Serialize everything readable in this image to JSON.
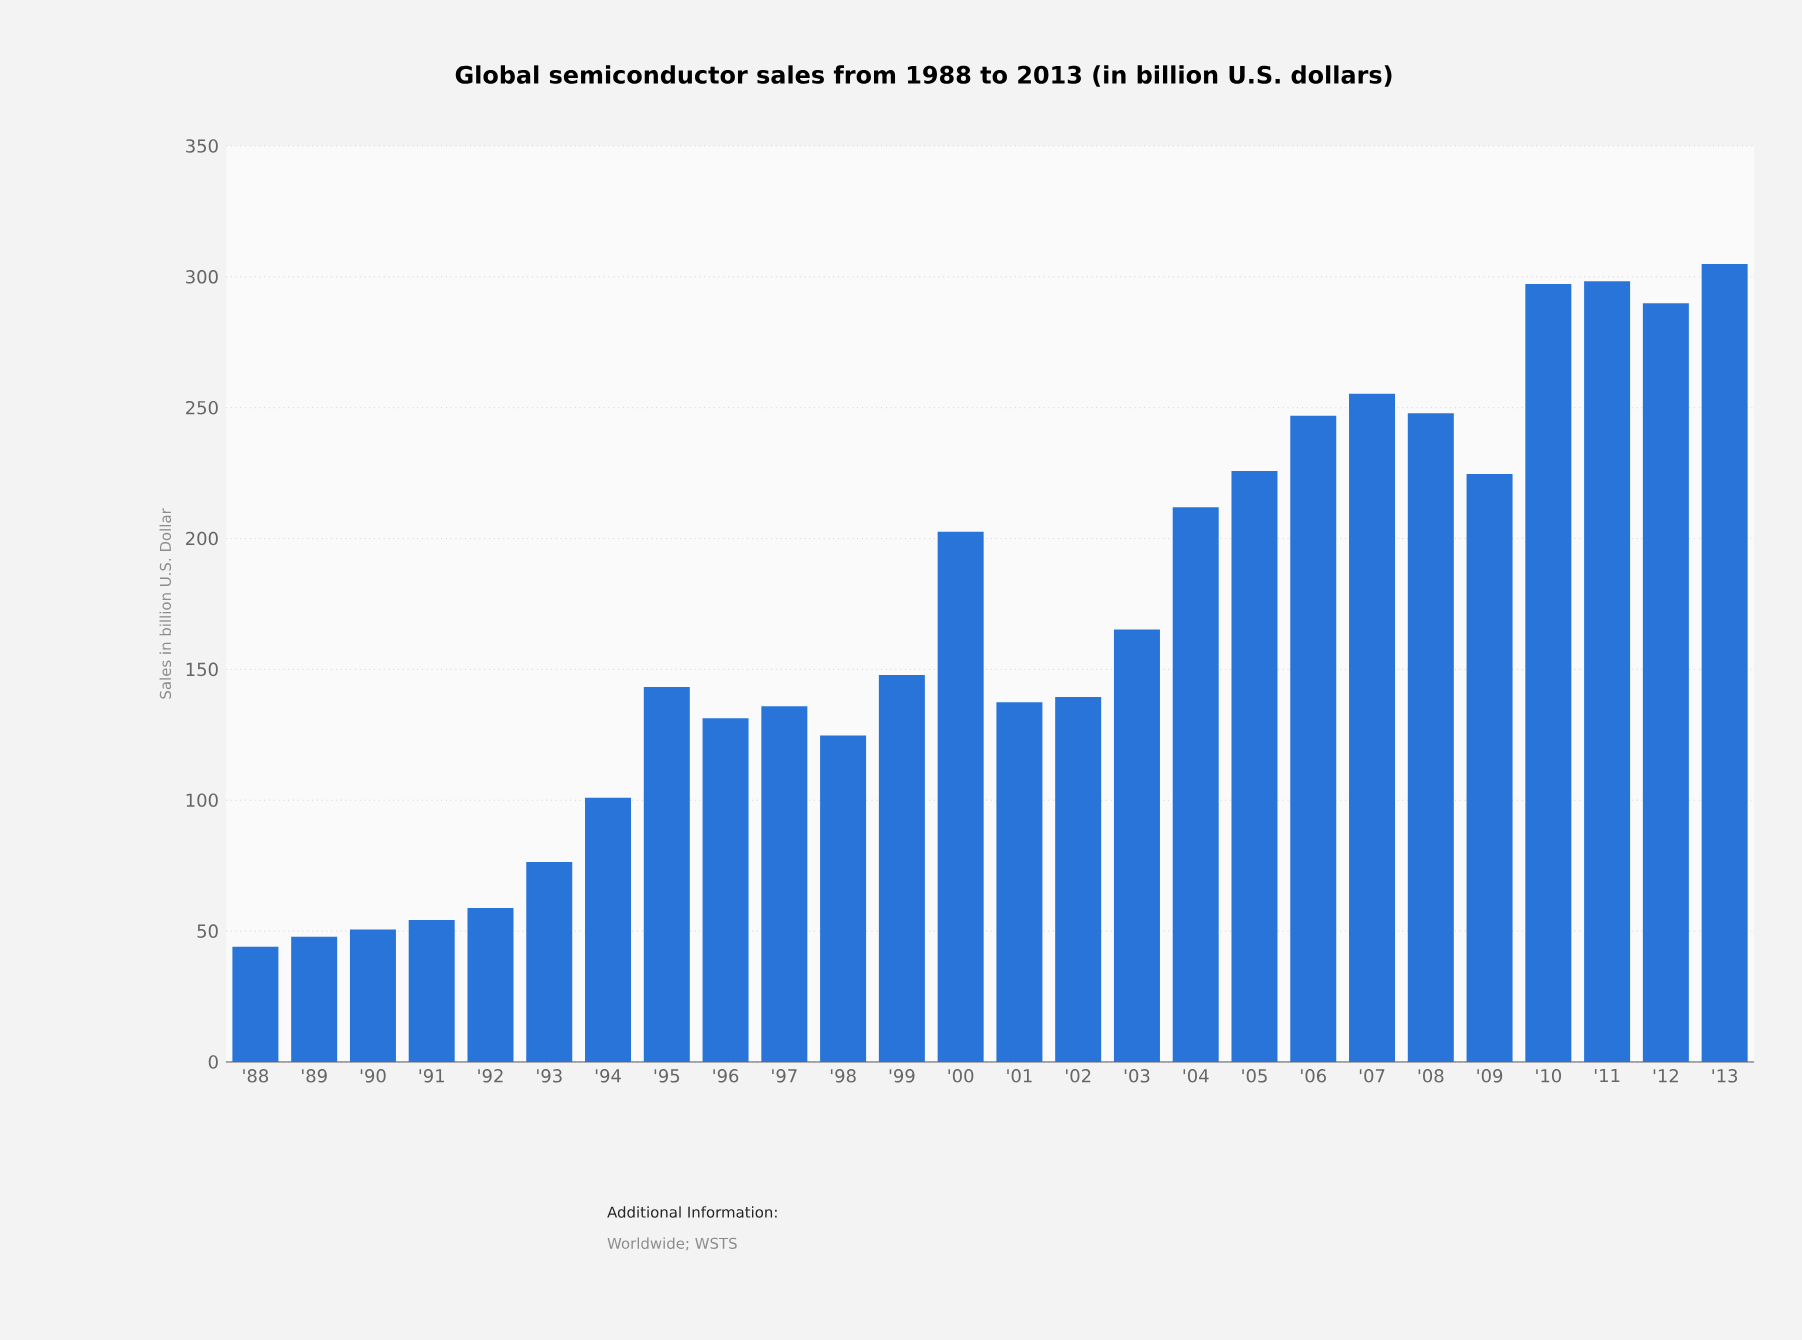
{
  "chart_data": {
    "type": "bar",
    "title": "Global semiconductor sales from 1988 to 2013 (in billion U.S. dollars)",
    "ylabel": "Sales in billion U.S. Dollar",
    "categories": [
      "'88",
      "'89",
      "'90",
      "'91",
      "'92",
      "'93",
      "'94",
      "'95",
      "'96",
      "'97",
      "'98",
      "'99",
      "'00",
      "'01",
      "'02",
      "'03",
      "'04",
      "'05",
      "'06",
      "'07",
      "'08",
      "'09",
      "'10",
      "'11",
      "'12",
      "'13"
    ],
    "values": [
      44.0,
      47.8,
      50.6,
      54.2,
      58.8,
      76.4,
      101.0,
      143.3,
      131.3,
      135.9,
      124.7,
      147.9,
      202.6,
      137.4,
      139.5,
      165.2,
      212.0,
      225.8,
      246.9,
      255.3,
      247.9,
      224.7,
      297.3,
      298.3,
      289.9,
      304.9
    ],
    "color": "#2874d9",
    "ylim": [
      0,
      350
    ],
    "yticks": [
      0,
      50,
      100,
      150,
      200,
      250,
      300,
      350
    ],
    "grid": "y",
    "annotations": [
      "Additional Information:",
      "Worldwide; WSTS"
    ]
  }
}
